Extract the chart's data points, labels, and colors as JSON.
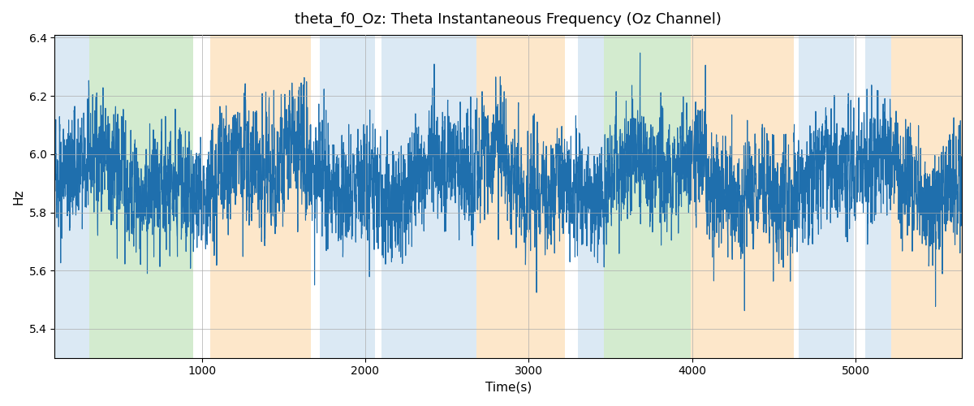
{
  "title": "theta_f0_Oz: Theta Instantaneous Frequency (Oz Channel)",
  "xlabel": "Time(s)",
  "ylabel": "Hz",
  "ylim": [
    5.3,
    6.41
  ],
  "xlim": [
    100,
    5650
  ],
  "line_color": "#1f6fad",
  "line_width": 0.8,
  "background_color": "#ffffff",
  "grid_color": "#aaaaaa",
  "colored_bands": [
    {
      "xmin": 100,
      "xmax": 310,
      "color": "#b8d4ea",
      "alpha": 0.5
    },
    {
      "xmin": 310,
      "xmax": 950,
      "color": "#a8d8a0",
      "alpha": 0.5
    },
    {
      "xmin": 1050,
      "xmax": 1670,
      "color": "#fdd5a0",
      "alpha": 0.55
    },
    {
      "xmin": 1720,
      "xmax": 2060,
      "color": "#b8d4ea",
      "alpha": 0.5
    },
    {
      "xmin": 2100,
      "xmax": 2680,
      "color": "#b8d4ea",
      "alpha": 0.5
    },
    {
      "xmin": 2680,
      "xmax": 3220,
      "color": "#fdd5a0",
      "alpha": 0.55
    },
    {
      "xmin": 3300,
      "xmax": 3460,
      "color": "#b8d4ea",
      "alpha": 0.5
    },
    {
      "xmin": 3460,
      "xmax": 3990,
      "color": "#a8d8a0",
      "alpha": 0.5
    },
    {
      "xmin": 3990,
      "xmax": 4620,
      "color": "#fdd5a0",
      "alpha": 0.55
    },
    {
      "xmin": 4650,
      "xmax": 4990,
      "color": "#b8d4ea",
      "alpha": 0.5
    },
    {
      "xmin": 5060,
      "xmax": 5220,
      "color": "#b8d4ea",
      "alpha": 0.5
    },
    {
      "xmin": 5220,
      "xmax": 5650,
      "color": "#fdd5a0",
      "alpha": 0.55
    }
  ],
  "xticks": [
    1000,
    2000,
    3000,
    4000,
    5000
  ],
  "yticks": [
    5.4,
    5.6,
    5.8,
    6.0,
    6.2,
    6.4
  ],
  "seed": 42,
  "t_start": 100,
  "t_end": 5650,
  "n_points": 5550,
  "base_freq": 5.92,
  "slow_amp1": 0.06,
  "slow_period1": 1200,
  "slow_amp2": 0.04,
  "slow_period2": 400,
  "noise_amp": 0.07
}
